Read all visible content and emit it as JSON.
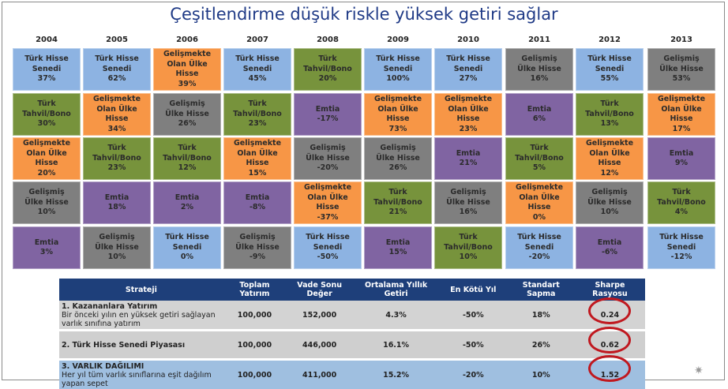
{
  "title": "Çeşitlendirme düşük riskle yüksek getiri sağlar",
  "colors": {
    "tr_equity": "#8db3e2",
    "tr_bond": "#77933c",
    "em_equity": "#f79646",
    "dev_equity": "#7f7f7f",
    "commodity": "#8064a2",
    "header": "#1e3f7a",
    "ring": "#c0181f"
  },
  "chart_data": {
    "type": "table",
    "years": [
      "2004",
      "2005",
      "2006",
      "2007",
      "2008",
      "2009",
      "2010",
      "2011",
      "2012",
      "2013"
    ],
    "asset_classes": {
      "tr_equity": "Türk Hisse\nSenedi",
      "tr_bond": "Türk\nTahvil/Bono",
      "em_equity": "Gelişmekte\nOlan Ülke\nHisse",
      "dev_equity": "Gelişmiş\nÜlke Hisse",
      "commodity": "Emtia"
    },
    "columns": [
      [
        {
          "asset": "tr_equity",
          "value": "37%"
        },
        {
          "asset": "tr_bond",
          "value": "30%"
        },
        {
          "asset": "em_equity",
          "value": "20%"
        },
        {
          "asset": "dev_equity",
          "value": "10%"
        },
        {
          "asset": "commodity",
          "value": "3%"
        }
      ],
      [
        {
          "asset": "tr_equity",
          "value": "62%"
        },
        {
          "asset": "em_equity",
          "value": "34%"
        },
        {
          "asset": "tr_bond",
          "value": "23%"
        },
        {
          "asset": "commodity",
          "value": "18%"
        },
        {
          "asset": "dev_equity",
          "value": "10%"
        }
      ],
      [
        {
          "asset": "em_equity",
          "value": "39%"
        },
        {
          "asset": "dev_equity",
          "value": "26%"
        },
        {
          "asset": "tr_bond",
          "value": "12%"
        },
        {
          "asset": "commodity",
          "value": "2%"
        },
        {
          "asset": "tr_equity",
          "value": "0%"
        }
      ],
      [
        {
          "asset": "tr_equity",
          "value": "45%"
        },
        {
          "asset": "tr_bond",
          "value": "23%"
        },
        {
          "asset": "em_equity",
          "value": "15%"
        },
        {
          "asset": "commodity",
          "value": "-8%"
        },
        {
          "asset": "dev_equity",
          "value": "-9%"
        }
      ],
      [
        {
          "asset": "tr_bond",
          "value": "20%"
        },
        {
          "asset": "commodity",
          "value": "-17%"
        },
        {
          "asset": "dev_equity",
          "value": "-20%"
        },
        {
          "asset": "em_equity",
          "value": "-37%"
        },
        {
          "asset": "tr_equity",
          "value": "-50%"
        }
      ],
      [
        {
          "asset": "tr_equity",
          "value": "100%"
        },
        {
          "asset": "em_equity",
          "value": "73%"
        },
        {
          "asset": "dev_equity",
          "value": "26%"
        },
        {
          "asset": "tr_bond",
          "value": "21%"
        },
        {
          "asset": "commodity",
          "value": "15%"
        }
      ],
      [
        {
          "asset": "tr_equity",
          "value": "27%"
        },
        {
          "asset": "em_equity",
          "value": "23%"
        },
        {
          "asset": "commodity",
          "value": "21%"
        },
        {
          "asset": "dev_equity",
          "value": "16%"
        },
        {
          "asset": "tr_bond",
          "value": "10%"
        }
      ],
      [
        {
          "asset": "dev_equity",
          "value": "16%"
        },
        {
          "asset": "commodity",
          "value": "6%"
        },
        {
          "asset": "tr_bond",
          "value": "5%"
        },
        {
          "asset": "em_equity",
          "value": "0%"
        },
        {
          "asset": "tr_equity",
          "value": "-20%"
        }
      ],
      [
        {
          "asset": "tr_equity",
          "value": "55%"
        },
        {
          "asset": "tr_bond",
          "value": "13%"
        },
        {
          "asset": "em_equity",
          "value": "12%"
        },
        {
          "asset": "dev_equity",
          "value": "10%"
        },
        {
          "asset": "commodity",
          "value": "-6%"
        }
      ],
      [
        {
          "asset": "dev_equity",
          "value": "53%"
        },
        {
          "asset": "em_equity",
          "value": "17%"
        },
        {
          "asset": "commodity",
          "value": "9%"
        },
        {
          "asset": "tr_bond",
          "value": "4%"
        },
        {
          "asset": "tr_equity",
          "value": "-12%"
        }
      ]
    ]
  },
  "strategy_table": {
    "headers": [
      "Strateji",
      "Toplam Yatırım",
      "Vade Sonu Değer",
      "Ortalama Yıllık Getiri",
      "En Kötü Yıl",
      "Standart Sapma",
      "Sharpe Rasyosu"
    ],
    "rows": [
      {
        "name": "1. Kazananlara Yatırım",
        "desc": "Bir önceki yılın en yüksek getiri sağlayan varlık sınıfına yatırım",
        "total": "100,000",
        "final": "152,000",
        "avg": "4.3%",
        "worst": "-50%",
        "std": "18%",
        "sharpe": "0.24"
      },
      {
        "name": "2. Türk Hisse Senedi Piyasası",
        "desc": "",
        "total": "100,000",
        "final": "446,000",
        "avg": "16.1%",
        "worst": "-50%",
        "std": "26%",
        "sharpe": "0.62"
      },
      {
        "name": "3. VARLIK DAĞILIMI",
        "desc": "Her yıl tüm varlık sınıflarına eşit dağılım yapan sepet",
        "total": "100,000",
        "final": "411,000",
        "avg": "15.2%",
        "worst": "-20%",
        "std": "10%",
        "sharpe": "1.52"
      }
    ]
  },
  "decor": {
    "star_glyph": "✷"
  }
}
